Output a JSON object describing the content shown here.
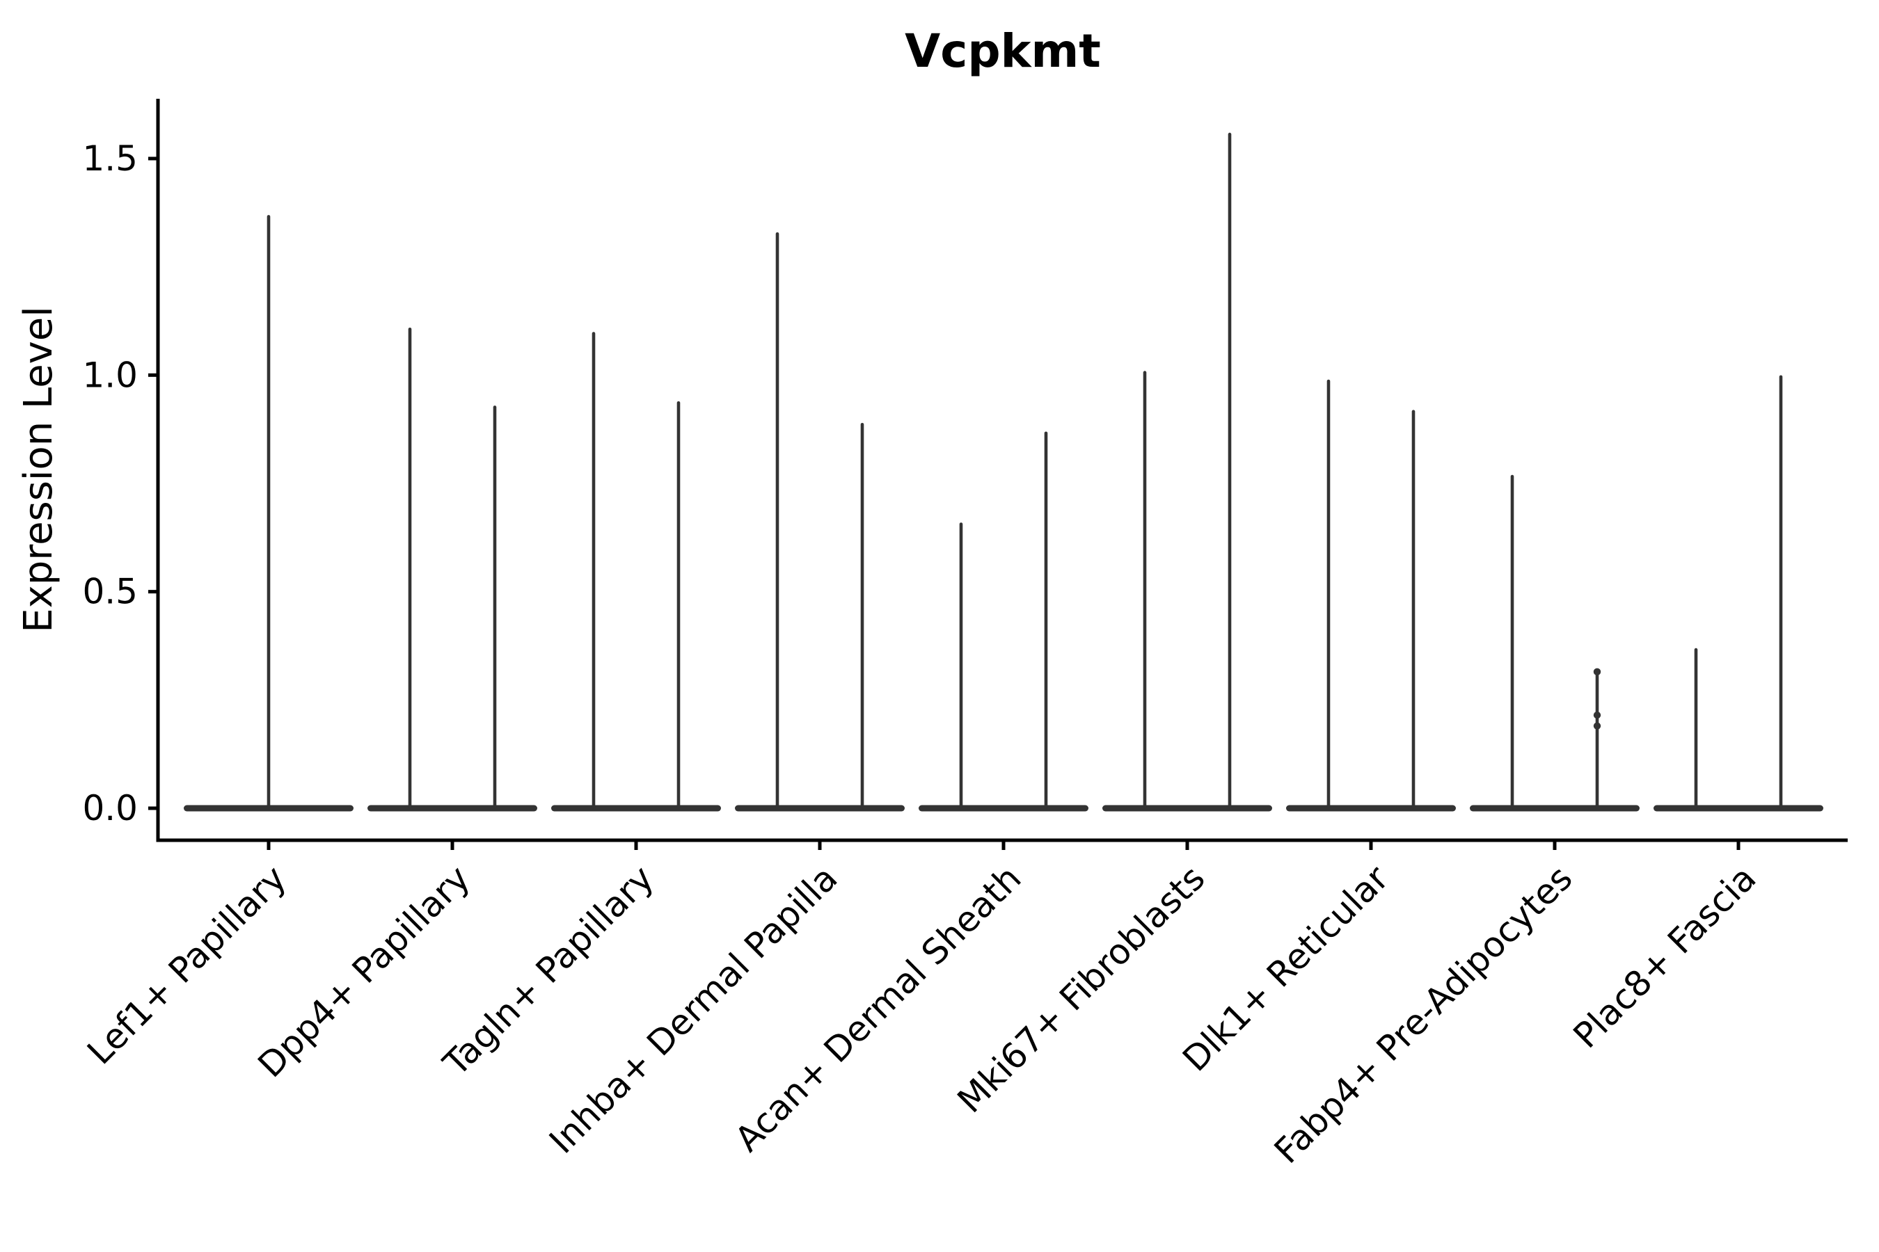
{
  "chart_data": {
    "type": "violin",
    "title": "Vcpkmt",
    "xlabel": "",
    "ylabel": "Expression Level",
    "grid": false,
    "legend": "none",
    "violin_color": "#333333",
    "axis_color": "#000000",
    "ylim": [
      -0.07,
      1.64
    ],
    "yticks": [
      {
        "value": 0.0,
        "label": "0.0"
      },
      {
        "value": 0.5,
        "label": "0.5"
      },
      {
        "value": 1.0,
        "label": "1.0"
      },
      {
        "value": 1.5,
        "label": "1.5"
      }
    ],
    "categories": [
      "Lef1+ Papillary",
      "Dpp4+ Papillary",
      "Tagln+ Papillary",
      "Inhba+ Dermal Papilla",
      "Acan+ Dermal Sheath",
      "Mki67+ Fibroblasts",
      "Dlk1+ Reticular",
      "Fabp4+ Pre-Adipocytes",
      "Plac8+ Fascia"
    ],
    "series": [
      {
        "category": "Lef1+ Papillary",
        "violin_maxima": [
          1.37
        ]
      },
      {
        "category": "Dpp4+ Papillary",
        "violin_maxima": [
          1.11,
          0.93
        ]
      },
      {
        "category": "Tagln+ Papillary",
        "violin_maxima": [
          1.1,
          0.94
        ]
      },
      {
        "category": "Inhba+ Dermal Papilla",
        "violin_maxima": [
          1.33,
          0.89
        ]
      },
      {
        "category": "Acan+ Dermal Sheath",
        "violin_maxima": [
          0.66,
          0.87
        ]
      },
      {
        "category": "Mki67+ Fibroblasts",
        "violin_maxima": [
          1.01,
          1.56
        ]
      },
      {
        "category": "Dlk1+ Reticular",
        "violin_maxima": [
          0.99,
          0.92
        ]
      },
      {
        "category": "Fabp4+ Pre-Adipocytes",
        "violin_maxima": [
          0.77,
          0.32
        ],
        "jitter_points": {
          "violin_index": 1,
          "values": [
            0.315,
            0.215,
            0.19
          ]
        }
      },
      {
        "category": "Plac8+ Fascia",
        "violin_maxima": [
          0.37,
          1.0
        ]
      }
    ],
    "shape_note": "each violin is flat at expression 0 with a thin vertical spike to its maximum"
  }
}
